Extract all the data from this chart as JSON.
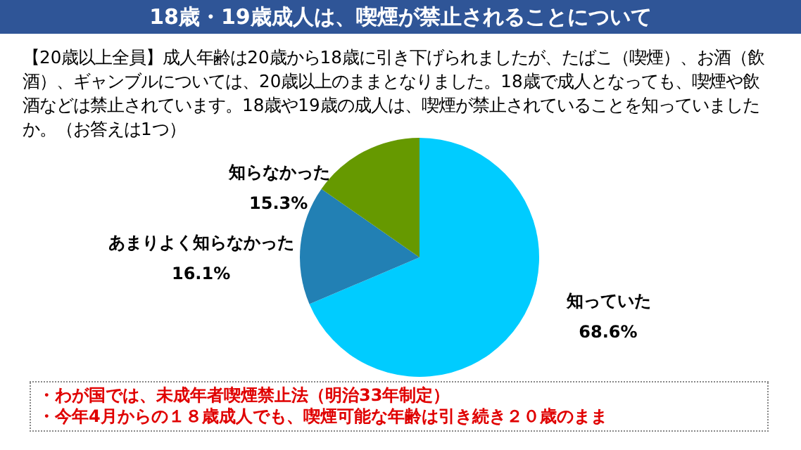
{
  "chart_data": {
    "type": "pie",
    "title": "18歳・19歳成人は、喫煙が禁止されることについて",
    "subtitle": "【20歳以上全員】成人年齢は20歳から18歳に引き下げられましたが、たばこ（喫煙）、お酒（飲酒）、ギャンブルについては、20歳以上のままとなりました。18歳で成人となっても、喫煙や飲酒などは禁止されています。18歳や19歳の成人は、喫煙が禁止されていることを知っていましたか。（お答えは1つ）",
    "categories": [
      "知っていた",
      "あまりよく知らなかった",
      "知らなかった"
    ],
    "values": [
      68.6,
      16.1,
      15.3
    ],
    "value_labels": [
      "68.6%",
      "16.1%",
      "15.3%"
    ],
    "colors": [
      "#00ccff",
      "#2280b4",
      "#669900"
    ],
    "annotations": [
      "・わが国では、未成年者喫煙禁止法（明治33年制定）",
      "・今年4月からの１８歳成人でも、喫煙可能な年齢は引き続き２０歳のまま"
    ]
  }
}
